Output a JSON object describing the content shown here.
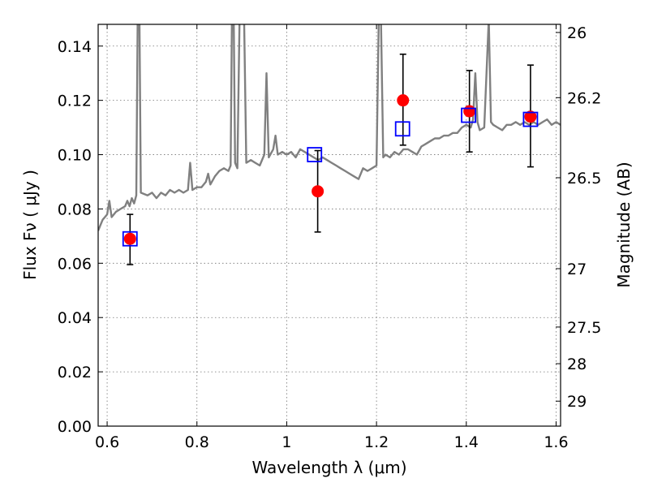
{
  "chart_data": {
    "type": "scatter",
    "xlabel": "Wavelength  λ (μm)",
    "ylabel": "Flux  Fν  ( μJy )",
    "y2label": "Magnitude (AB)",
    "xlim": [
      0.58,
      1.61
    ],
    "ylim": [
      0.0,
      0.148
    ],
    "grid": true,
    "x_ticks": [
      "0.6",
      "0.8",
      "1",
      "1.2",
      "1.4",
      "1.6"
    ],
    "y_ticks": [
      "0.00",
      "0.02",
      "0.04",
      "0.06",
      "0.08",
      "0.10",
      "0.12",
      "0.14"
    ],
    "y2_ticks": [
      {
        "label": "26",
        "flux": 0.145
      },
      {
        "label": "26.2",
        "flux": 0.121
      },
      {
        "label": "26.5",
        "flux": 0.0915
      },
      {
        "label": "27",
        "flux": 0.058
      },
      {
        "label": "27.5",
        "flux": 0.0365
      },
      {
        "label": "28",
        "flux": 0.023
      },
      {
        "label": "29",
        "flux": 0.0092
      }
    ],
    "series": [
      {
        "kind": "line",
        "color": "#808080",
        "points": [
          [
            0.58,
            0.072
          ],
          [
            0.59,
            0.076
          ],
          [
            0.6,
            0.078
          ],
          [
            0.605,
            0.083
          ],
          [
            0.61,
            0.077
          ],
          [
            0.62,
            0.079
          ],
          [
            0.63,
            0.08
          ],
          [
            0.64,
            0.081
          ],
          [
            0.645,
            0.083
          ],
          [
            0.65,
            0.081
          ],
          [
            0.655,
            0.084
          ],
          [
            0.66,
            0.082
          ],
          [
            0.665,
            0.085
          ],
          [
            0.668,
            0.15
          ],
          [
            0.672,
            0.15
          ],
          [
            0.675,
            0.086
          ],
          [
            0.69,
            0.085
          ],
          [
            0.7,
            0.086
          ],
          [
            0.71,
            0.084
          ],
          [
            0.72,
            0.086
          ],
          [
            0.73,
            0.085
          ],
          [
            0.74,
            0.087
          ],
          [
            0.75,
            0.086
          ],
          [
            0.76,
            0.087
          ],
          [
            0.77,
            0.086
          ],
          [
            0.78,
            0.087
          ],
          [
            0.785,
            0.097
          ],
          [
            0.79,
            0.087
          ],
          [
            0.8,
            0.088
          ],
          [
            0.81,
            0.088
          ],
          [
            0.82,
            0.09
          ],
          [
            0.825,
            0.093
          ],
          [
            0.83,
            0.089
          ],
          [
            0.84,
            0.092
          ],
          [
            0.85,
            0.094
          ],
          [
            0.86,
            0.095
          ],
          [
            0.87,
            0.094
          ],
          [
            0.875,
            0.096
          ],
          [
            0.878,
            0.15
          ],
          [
            0.882,
            0.15
          ],
          [
            0.885,
            0.097
          ],
          [
            0.89,
            0.095
          ],
          [
            0.895,
            0.15
          ],
          [
            0.905,
            0.15
          ],
          [
            0.91,
            0.097
          ],
          [
            0.92,
            0.098
          ],
          [
            0.93,
            0.097
          ],
          [
            0.94,
            0.096
          ],
          [
            0.95,
            0.1
          ],
          [
            0.955,
            0.13
          ],
          [
            0.96,
            0.099
          ],
          [
            0.97,
            0.102
          ],
          [
            0.975,
            0.107
          ],
          [
            0.98,
            0.1
          ],
          [
            0.99,
            0.101
          ],
          [
            1.0,
            0.1
          ],
          [
            1.01,
            0.101
          ],
          [
            1.02,
            0.099
          ],
          [
            1.03,
            0.102
          ],
          [
            1.04,
            0.101
          ],
          [
            1.05,
            0.1
          ],
          [
            1.06,
            0.099
          ],
          [
            1.07,
            0.098
          ],
          [
            1.08,
            0.099
          ],
          [
            1.09,
            0.098
          ],
          [
            1.1,
            0.097
          ],
          [
            1.11,
            0.096
          ],
          [
            1.12,
            0.095
          ],
          [
            1.13,
            0.094
          ],
          [
            1.14,
            0.093
          ],
          [
            1.15,
            0.092
          ],
          [
            1.16,
            0.091
          ],
          [
            1.17,
            0.095
          ],
          [
            1.18,
            0.094
          ],
          [
            1.19,
            0.095
          ],
          [
            1.2,
            0.096
          ],
          [
            1.205,
            0.15
          ],
          [
            1.21,
            0.15
          ],
          [
            1.215,
            0.099
          ],
          [
            1.22,
            0.1
          ],
          [
            1.23,
            0.099
          ],
          [
            1.24,
            0.101
          ],
          [
            1.25,
            0.1
          ],
          [
            1.26,
            0.102
          ],
          [
            1.27,
            0.102
          ],
          [
            1.28,
            0.101
          ],
          [
            1.29,
            0.1
          ],
          [
            1.3,
            0.103
          ],
          [
            1.31,
            0.104
          ],
          [
            1.32,
            0.105
          ],
          [
            1.33,
            0.106
          ],
          [
            1.34,
            0.106
          ],
          [
            1.35,
            0.107
          ],
          [
            1.36,
            0.107
          ],
          [
            1.37,
            0.108
          ],
          [
            1.38,
            0.108
          ],
          [
            1.39,
            0.11
          ],
          [
            1.4,
            0.111
          ],
          [
            1.41,
            0.11
          ],
          [
            1.415,
            0.113
          ],
          [
            1.42,
            0.13
          ],
          [
            1.425,
            0.112
          ],
          [
            1.43,
            0.109
          ],
          [
            1.44,
            0.11
          ],
          [
            1.445,
            0.13
          ],
          [
            1.45,
            0.15
          ],
          [
            1.455,
            0.112
          ],
          [
            1.46,
            0.111
          ],
          [
            1.47,
            0.11
          ],
          [
            1.48,
            0.109
          ],
          [
            1.49,
            0.111
          ],
          [
            1.5,
            0.111
          ],
          [
            1.51,
            0.112
          ],
          [
            1.52,
            0.111
          ],
          [
            1.53,
            0.112
          ],
          [
            1.54,
            0.111
          ],
          [
            1.55,
            0.112
          ],
          [
            1.56,
            0.111
          ],
          [
            1.57,
            0.112
          ],
          [
            1.58,
            0.113
          ],
          [
            1.59,
            0.111
          ],
          [
            1.6,
            0.112
          ],
          [
            1.61,
            0.111
          ]
        ]
      },
      {
        "kind": "errorbar",
        "color": "#000000",
        "points": [
          {
            "x": 0.651,
            "lo": 0.0595,
            "hi": 0.078
          },
          {
            "x": 1.069,
            "lo": 0.0715,
            "hi": 0.1015
          },
          {
            "x": 1.259,
            "lo": 0.1035,
            "hi": 0.137
          },
          {
            "x": 1.407,
            "lo": 0.101,
            "hi": 0.131
          },
          {
            "x": 1.543,
            "lo": 0.0955,
            "hi": 0.133
          }
        ]
      },
      {
        "kind": "scatter-circle",
        "color": "#ff0000",
        "points": [
          {
            "x": 0.651,
            "y": 0.069
          },
          {
            "x": 1.069,
            "y": 0.0865
          },
          {
            "x": 1.259,
            "y": 0.12
          },
          {
            "x": 1.407,
            "y": 0.116
          },
          {
            "x": 1.543,
            "y": 0.114
          }
        ]
      },
      {
        "kind": "scatter-square",
        "color": "#0000ff",
        "points": [
          {
            "x": 0.651,
            "y": 0.069
          },
          {
            "x": 1.062,
            "y": 0.1
          },
          {
            "x": 1.258,
            "y": 0.1095
          },
          {
            "x": 1.405,
            "y": 0.1145
          },
          {
            "x": 1.543,
            "y": 0.113
          }
        ]
      }
    ]
  }
}
